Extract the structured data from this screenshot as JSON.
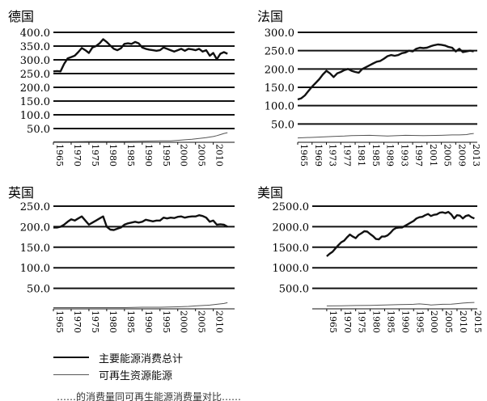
{
  "chart_data": [
    {
      "type": "line",
      "panel_title": "德国",
      "y_ticks": [
        50.0,
        100.0,
        150.0,
        200.0,
        250.0,
        300.0,
        350.0,
        400.0
      ],
      "y_tick_labels": [
        "50.0",
        "100.0",
        "150.0",
        "200.0",
        "250.0",
        "300.0",
        "350.0",
        "400.0"
      ],
      "ylim": [
        0,
        400
      ],
      "x_tick_labels": [
        "1965",
        "1970",
        "1975",
        "1980",
        "1985",
        "1990",
        "1995",
        "2000",
        "2005",
        "2010"
      ],
      "xlim": [
        1965,
        2016
      ],
      "grid": "horizontal",
      "series": [
        {
          "key": "total",
          "x": [
            1965,
            1966,
            1967,
            1968,
            1969,
            1970,
            1971,
            1972,
            1973,
            1974,
            1975,
            1976,
            1977,
            1978,
            1979,
            1980,
            1981,
            1982,
            1983,
            1984,
            1985,
            1986,
            1987,
            1988,
            1989,
            1990,
            1991,
            1992,
            1993,
            1994,
            1995,
            1996,
            1997,
            1998,
            1999,
            2000,
            2001,
            2002,
            2003,
            2004,
            2005,
            2006,
            2007,
            2008,
            2009,
            2010,
            2011,
            2012,
            2013,
            2014
          ],
          "values": [
            258,
            259,
            258,
            285,
            305,
            310,
            315,
            328,
            343,
            335,
            325,
            345,
            350,
            360,
            375,
            365,
            352,
            340,
            335,
            342,
            358,
            360,
            358,
            365,
            360,
            345,
            340,
            337,
            335,
            333,
            335,
            345,
            340,
            335,
            330,
            335,
            340,
            333,
            340,
            338,
            335,
            340,
            330,
            335,
            315,
            325,
            302,
            322,
            328,
            322
          ]
        },
        {
          "key": "renewable",
          "x": [
            1965,
            1970,
            1975,
            1980,
            1985,
            1990,
            1995,
            1998,
            2000,
            2002,
            2004,
            2006,
            2008,
            2009,
            2010,
            2011,
            2012,
            2013,
            2014
          ],
          "values": [
            2,
            2,
            3,
            3,
            3,
            4,
            5,
            5,
            7,
            9,
            11,
            14,
            17,
            19,
            21,
            24,
            28,
            32,
            35
          ]
        }
      ]
    },
    {
      "type": "line",
      "panel_title": "法国",
      "y_ticks": [
        50.0,
        100.0,
        150.0,
        200.0,
        250.0,
        300.0
      ],
      "y_tick_labels": [
        "50.0",
        "100.0",
        "150.0",
        "200.0",
        "250.0",
        "300.0"
      ],
      "ylim": [
        0,
        300
      ],
      "x_tick_labels": [
        "1965",
        "1969",
        "1973",
        "1977",
        "1981",
        "1985",
        "1989",
        "1993",
        "1997",
        "2001",
        "2005",
        "2009",
        "2013"
      ],
      "xlim": [
        1965,
        2015
      ],
      "grid": "horizontal",
      "series": [
        {
          "key": "total",
          "x": [
            1965,
            1966,
            1967,
            1968,
            1969,
            1970,
            1971,
            1972,
            1973,
            1974,
            1975,
            1976,
            1977,
            1978,
            1979,
            1980,
            1981,
            1982,
            1983,
            1984,
            1985,
            1986,
            1987,
            1988,
            1989,
            1990,
            1991,
            1992,
            1993,
            1994,
            1995,
            1996,
            1997,
            1998,
            1999,
            2000,
            2001,
            2002,
            2003,
            2004,
            2005,
            2006,
            2007,
            2008,
            2009,
            2010,
            2011,
            2012,
            2013,
            2014
          ],
          "values": [
            117,
            120,
            128,
            140,
            152,
            162,
            172,
            185,
            195,
            188,
            178,
            188,
            192,
            197,
            200,
            195,
            192,
            190,
            200,
            205,
            210,
            215,
            220,
            222,
            228,
            235,
            238,
            236,
            238,
            243,
            245,
            250,
            248,
            255,
            258,
            257,
            258,
            262,
            265,
            267,
            266,
            264,
            260,
            258,
            248,
            255,
            246,
            248,
            250,
            248
          ]
        },
        {
          "key": "renewable",
          "x": [
            1965,
            1970,
            1975,
            1978,
            1980,
            1985,
            1990,
            1995,
            2000,
            2005,
            2008,
            2010,
            2012,
            2013,
            2014
          ],
          "values": [
            12,
            14,
            16,
            17,
            18,
            19,
            17,
            19,
            18,
            19,
            20,
            20,
            21,
            23,
            24
          ]
        }
      ]
    },
    {
      "type": "line",
      "panel_title": "英国",
      "y_ticks": [
        50.0,
        100.0,
        150.0,
        200.0,
        250.0
      ],
      "y_tick_labels": [
        "50.0",
        "100.0",
        "150.0",
        "200.0",
        "250.0"
      ],
      "ylim": [
        0,
        250
      ],
      "x_tick_labels": [
        "1965",
        "1970",
        "1975",
        "1980",
        "1985",
        "1990",
        "1995",
        "2000",
        "2005",
        "2010"
      ],
      "xlim": [
        1965,
        2016
      ],
      "grid": "horizontal",
      "series": [
        {
          "key": "total",
          "x": [
            1965,
            1966,
            1967,
            1968,
            1969,
            1970,
            1971,
            1972,
            1973,
            1974,
            1975,
            1976,
            1977,
            1978,
            1979,
            1980,
            1981,
            1982,
            1983,
            1984,
            1985,
            1986,
            1987,
            1988,
            1989,
            1990,
            1991,
            1992,
            1993,
            1994,
            1995,
            1996,
            1997,
            1998,
            1999,
            2000,
            2001,
            2002,
            2003,
            2004,
            2005,
            2006,
            2007,
            2008,
            2009,
            2010,
            2011,
            2012,
            2013,
            2014
          ],
          "values": [
            198,
            198,
            200,
            205,
            212,
            218,
            215,
            220,
            225,
            215,
            205,
            210,
            215,
            220,
            225,
            200,
            193,
            192,
            195,
            198,
            205,
            208,
            210,
            212,
            210,
            212,
            217,
            215,
            213,
            215,
            215,
            222,
            220,
            222,
            221,
            224,
            225,
            222,
            224,
            225,
            225,
            228,
            226,
            222,
            212,
            215,
            205,
            206,
            205,
            200
          ]
        },
        {
          "key": "renewable",
          "x": [
            1965,
            1975,
            1985,
            1990,
            1995,
            2000,
            2003,
            2005,
            2007,
            2009,
            2010,
            2011,
            2012,
            2013,
            2014
          ],
          "values": [
            3,
            3,
            3,
            4,
            4,
            5,
            6,
            7,
            8,
            9,
            10,
            11,
            12,
            13,
            15
          ]
        }
      ]
    },
    {
      "type": "line",
      "panel_title": "美国",
      "y_ticks": [
        500.0,
        1000.0,
        1500.0,
        2000.0,
        2500.0
      ],
      "y_tick_labels": [
        "500.0",
        "1000.0",
        "1500.0",
        "2000.0",
        "2500.0"
      ],
      "ylim": [
        0,
        2500
      ],
      "x_tick_labels": [
        "1965",
        "1970",
        "1975",
        "1980",
        "1985",
        "1990",
        "1995",
        "2000",
        "2005",
        "2010",
        "2015"
      ],
      "xlim": [
        1960,
        2017
      ],
      "grid": "horizontal",
      "series": [
        {
          "key": "total",
          "x": [
            1965,
            1966,
            1967,
            1968,
            1969,
            1970,
            1971,
            1972,
            1973,
            1974,
            1975,
            1976,
            1977,
            1978,
            1979,
            1980,
            1981,
            1982,
            1983,
            1984,
            1985,
            1986,
            1987,
            1988,
            1989,
            1990,
            1991,
            1992,
            1993,
            1994,
            1995,
            1996,
            1997,
            1998,
            1999,
            2000,
            2001,
            2002,
            2003,
            2004,
            2005,
            2006,
            2007,
            2008,
            2009,
            2010,
            2011,
            2012,
            2013,
            2014,
            2015,
            2016
          ],
          "values": [
            1280,
            1340,
            1390,
            1470,
            1550,
            1620,
            1660,
            1740,
            1810,
            1760,
            1720,
            1800,
            1840,
            1890,
            1880,
            1820,
            1770,
            1700,
            1690,
            1760,
            1760,
            1790,
            1850,
            1930,
            1970,
            1980,
            1980,
            2020,
            2060,
            2100,
            2140,
            2200,
            2230,
            2240,
            2280,
            2310,
            2260,
            2290,
            2300,
            2340,
            2350,
            2330,
            2360,
            2300,
            2200,
            2280,
            2270,
            2200,
            2260,
            2280,
            2230,
            2200
          ]
        },
        {
          "key": "renewable",
          "x": [
            1965,
            1970,
            1975,
            1980,
            1985,
            1990,
            1995,
            1997,
            2000,
            2001,
            2005,
            2008,
            2010,
            2012,
            2014,
            2016
          ],
          "values": [
            70,
            75,
            80,
            85,
            95,
            105,
            110,
            120,
            105,
            95,
            110,
            115,
            125,
            140,
            150,
            155
          ]
        }
      ]
    }
  ],
  "legend": [
    {
      "key": "total",
      "label": "主要能源消费总计",
      "color": "#111111",
      "width": 2.4
    },
    {
      "key": "renewable",
      "label": "可再生资源能源",
      "color": "#555555",
      "width": 1
    }
  ],
  "caption": "……的消费量同可再生能源消费量对比……"
}
